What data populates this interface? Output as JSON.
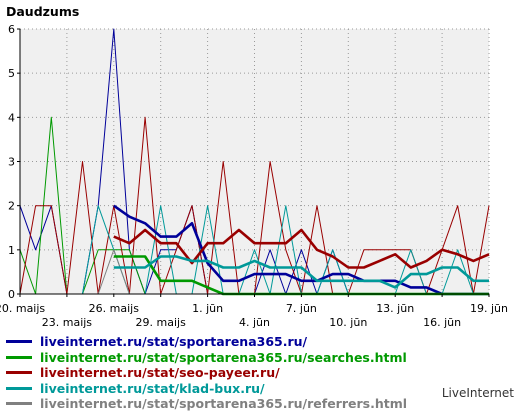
{
  "chart_data": {
    "type": "line",
    "title": "Daudzums",
    "ylim": [
      0,
      6
    ],
    "yticks": [
      0,
      1,
      2,
      3,
      4,
      5,
      6
    ],
    "grid": true,
    "x": [
      "20. maijs",
      "21",
      "22",
      "23. maijs",
      "24",
      "25",
      "26. maijs",
      "27",
      "28",
      "29. maijs",
      "30",
      "31",
      "1. jūn",
      "2",
      "3",
      "4. jūn",
      "5",
      "6",
      "7. jūn",
      "8",
      "9",
      "10. jūn",
      "11",
      "12",
      "13. jūn",
      "14",
      "15",
      "16. jūn",
      "17",
      "18",
      "19. jūn"
    ],
    "xtick_labels": [
      {
        "index": 0,
        "text": "20. maijs",
        "row": 1
      },
      {
        "index": 3,
        "text": "23. maijs",
        "row": 2
      },
      {
        "index": 6,
        "text": "26. maijs",
        "row": 1
      },
      {
        "index": 9,
        "text": "29. maijs",
        "row": 2
      },
      {
        "index": 12,
        "text": "1. jūn",
        "row": 1
      },
      {
        "index": 15,
        "text": "4. jūn",
        "row": 2
      },
      {
        "index": 18,
        "text": "7. jūn",
        "row": 1
      },
      {
        "index": 21,
        "text": "10. jūn",
        "row": 2
      },
      {
        "index": 24,
        "text": "13. jūn",
        "row": 1
      },
      {
        "index": 27,
        "text": "16. jūn",
        "row": 2
      },
      {
        "index": 30,
        "text": "19. jūn",
        "row": 1
      }
    ],
    "series": [
      {
        "name": "liveinternet.ru/stat/sportarena365.ru/",
        "color": "#000099",
        "style": "daily",
        "values": [
          2,
          1,
          2,
          0,
          0,
          2,
          6,
          1,
          0,
          1,
          1,
          2,
          0,
          0,
          0,
          0,
          1,
          0,
          1,
          0,
          1,
          0,
          0,
          0,
          0,
          0,
          0,
          0,
          0,
          0,
          0
        ]
      },
      {
        "name": "liveinternet.ru/stat/sportarena365.ru/",
        "color": "#000099",
        "style": "average",
        "values": [
          null,
          null,
          null,
          null,
          null,
          null,
          2,
          1.75,
          1.6,
          1.3,
          1.3,
          1.6,
          0.7,
          0.3,
          0.3,
          0.45,
          0.45,
          0.45,
          0.3,
          0.3,
          0.45,
          0.45,
          0.3,
          0.3,
          0.3,
          0.15,
          0.15,
          0,
          0,
          0,
          0
        ]
      },
      {
        "name": "liveinternet.ru/stat/sportarena365.ru/searches.html",
        "color": "#009900",
        "style": "daily",
        "values": [
          1,
          0,
          4,
          0,
          0,
          1,
          1,
          1,
          0,
          0,
          0,
          0,
          0,
          0,
          0,
          0,
          0,
          0,
          0,
          0,
          0,
          0,
          0,
          0,
          0,
          0,
          0,
          0,
          0,
          0,
          0
        ]
      },
      {
        "name": "liveinternet.ru/stat/sportarena365.ru/searches.html",
        "color": "#009900",
        "style": "average",
        "values": [
          null,
          null,
          null,
          null,
          null,
          null,
          0.85,
          0.85,
          0.85,
          0.3,
          0.3,
          0.3,
          0.15,
          0,
          0,
          0,
          0,
          0,
          0,
          0,
          0,
          0,
          0,
          0,
          0,
          0,
          0,
          0,
          0,
          0,
          0
        ]
      },
      {
        "name": "liveinternet.ru/stat/seo-payeer.ru/",
        "color": "#990000",
        "style": "daily",
        "values": [
          0,
          2,
          2,
          0,
          3,
          0,
          2,
          0,
          4,
          0,
          1,
          2,
          0,
          3,
          0,
          0,
          3,
          1,
          0,
          2,
          0,
          0,
          1,
          1,
          1,
          1,
          0,
          1,
          2,
          0,
          2
        ]
      },
      {
        "name": "liveinternet.ru/stat/seo-payeer.ru/",
        "color": "#990000",
        "style": "average",
        "values": [
          null,
          null,
          null,
          null,
          null,
          null,
          1.3,
          1.15,
          1.45,
          1.15,
          1.15,
          0.7,
          1.15,
          1.15,
          1.45,
          1.15,
          1.15,
          1.15,
          1.45,
          1.0,
          0.85,
          0.6,
          0.6,
          0.75,
          0.9,
          0.6,
          0.75,
          1.0,
          0.9,
          0.75,
          0.9
        ]
      },
      {
        "name": "liveinternet.ru/stat/klad-bux.ru/",
        "color": "#009999",
        "style": "daily",
        "values": [
          0,
          0,
          0,
          0,
          0,
          2,
          1,
          0,
          0,
          2,
          0,
          0,
          2,
          0,
          0,
          1,
          0,
          2,
          0,
          0,
          1,
          0,
          0,
          0,
          0,
          1,
          0,
          0,
          1,
          0,
          0
        ]
      },
      {
        "name": "liveinternet.ru/stat/klad-bux.ru/",
        "color": "#009999",
        "style": "average",
        "values": [
          null,
          null,
          null,
          null,
          null,
          null,
          0.6,
          0.6,
          0.6,
          0.85,
          0.85,
          0.75,
          0.75,
          0.6,
          0.6,
          0.75,
          0.6,
          0.6,
          0.6,
          0.3,
          0.3,
          0.3,
          0.3,
          0.3,
          0.15,
          0.45,
          0.45,
          0.6,
          0.6,
          0.3,
          0.3
        ]
      },
      {
        "name": "liveinternet.ru/stat/sportarena365.ru/referrers.html",
        "color": "#808080",
        "style": "daily",
        "values": [
          null,
          null,
          null,
          null,
          null,
          0,
          1,
          0,
          0,
          0,
          0,
          0,
          0,
          0,
          0,
          0,
          0,
          0,
          0,
          0,
          0,
          0,
          0,
          0,
          0,
          0,
          0,
          0,
          0,
          0,
          0
        ]
      }
    ],
    "legend": [
      {
        "text": "liveinternet.ru/stat/sportarena365.ru/",
        "color": "#000099"
      },
      {
        "text": "liveinternet.ru/stat/sportarena365.ru/searches.html",
        "color": "#009900"
      },
      {
        "text": "liveinternet.ru/stat/seo-payeer.ru/",
        "color": "#990000"
      },
      {
        "text": "liveinternet.ru/stat/klad-bux.ru/",
        "color": "#009999"
      },
      {
        "text": "liveinternet.ru/stat/sportarena365.ru/referrers.html",
        "color": "#808080"
      }
    ],
    "legend_position": "bottom-left"
  },
  "brand": "LiveInternet"
}
